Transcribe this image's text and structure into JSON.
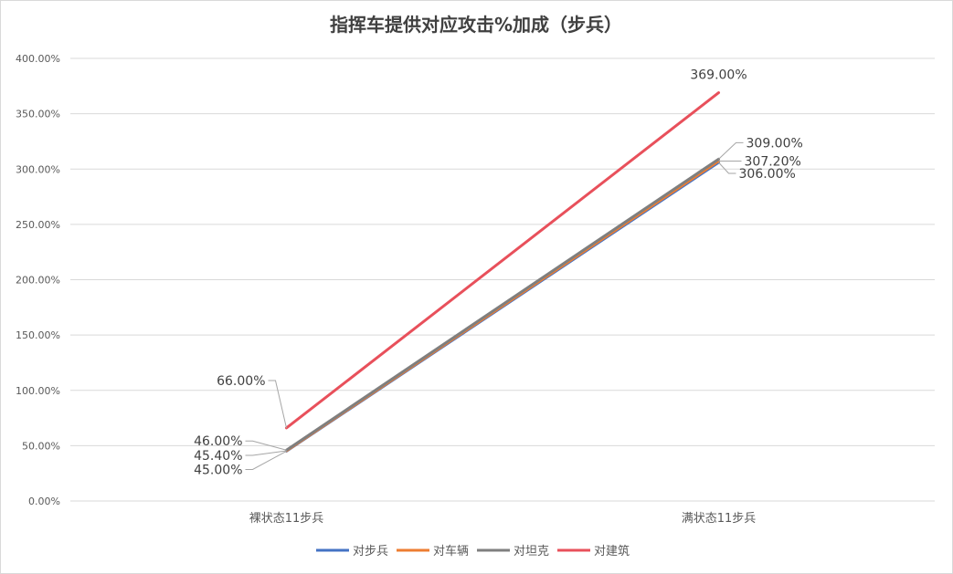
{
  "chart_data": {
    "type": "line",
    "title": "指挥车提供对应攻击%加成（步兵）",
    "categories": [
      "裸状态11步兵",
      "满状态11步兵"
    ],
    "series": [
      {
        "name": "对步兵",
        "values": [
          45.0,
          306.0
        ],
        "labels": [
          "45.00%",
          "306.00%"
        ],
        "color": "#4472c4"
      },
      {
        "name": "对车辆",
        "values": [
          45.4,
          307.2
        ],
        "labels": [
          "45.40%",
          "307.20%"
        ],
        "color": "#ed7d31"
      },
      {
        "name": "对坦克",
        "values": [
          46.0,
          309.0
        ],
        "labels": [
          "46.00%",
          "309.00%"
        ],
        "color": "#7f7f7f"
      },
      {
        "name": "对建筑",
        "values": [
          66.0,
          369.0
        ],
        "labels": [
          "66.00%",
          "369.00%"
        ],
        "color": "#e8505b"
      }
    ],
    "ylim": [
      0,
      400
    ],
    "yticks": [
      "0.00%",
      "50.00%",
      "100.00%",
      "150.00%",
      "200.00%",
      "250.00%",
      "300.00%",
      "350.00%",
      "400.00%"
    ],
    "grid": true,
    "legend_position": "bottom"
  }
}
